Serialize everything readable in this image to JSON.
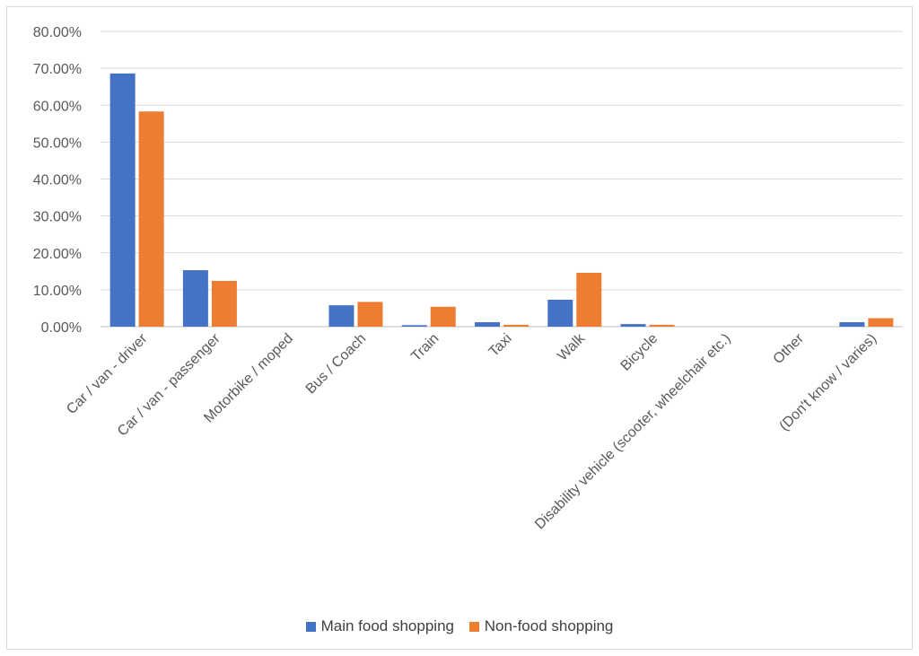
{
  "chart_data": {
    "type": "bar",
    "categories": [
      "Car / van - driver",
      "Car / van - passenger",
      "Motorbike / moped",
      "Bus / Coach",
      "Train",
      "Taxi",
      "Walk",
      "Bicycle",
      "Disability vehicle (scooter, wheelchair etc.)",
      "Other",
      "(Don't know / varies)"
    ],
    "series": [
      {
        "name": "Main food shopping",
        "color": "#4472C4",
        "values": [
          68.6,
          15.3,
          0.0,
          5.8,
          0.4,
          1.2,
          7.3,
          0.7,
          0.0,
          0.0,
          1.2
        ]
      },
      {
        "name": "Non-food shopping",
        "color": "#ED7D31",
        "values": [
          58.3,
          12.4,
          0.0,
          6.7,
          5.4,
          0.5,
          14.6,
          0.5,
          0.0,
          0.0,
          2.3
        ]
      }
    ],
    "yticks": [
      "0.00%",
      "10.00%",
      "20.00%",
      "30.00%",
      "40.00%",
      "50.00%",
      "60.00%",
      "70.00%",
      "80.00%"
    ],
    "ylim": [
      0,
      80
    ],
    "grid": true,
    "legend_position": "bottom"
  }
}
